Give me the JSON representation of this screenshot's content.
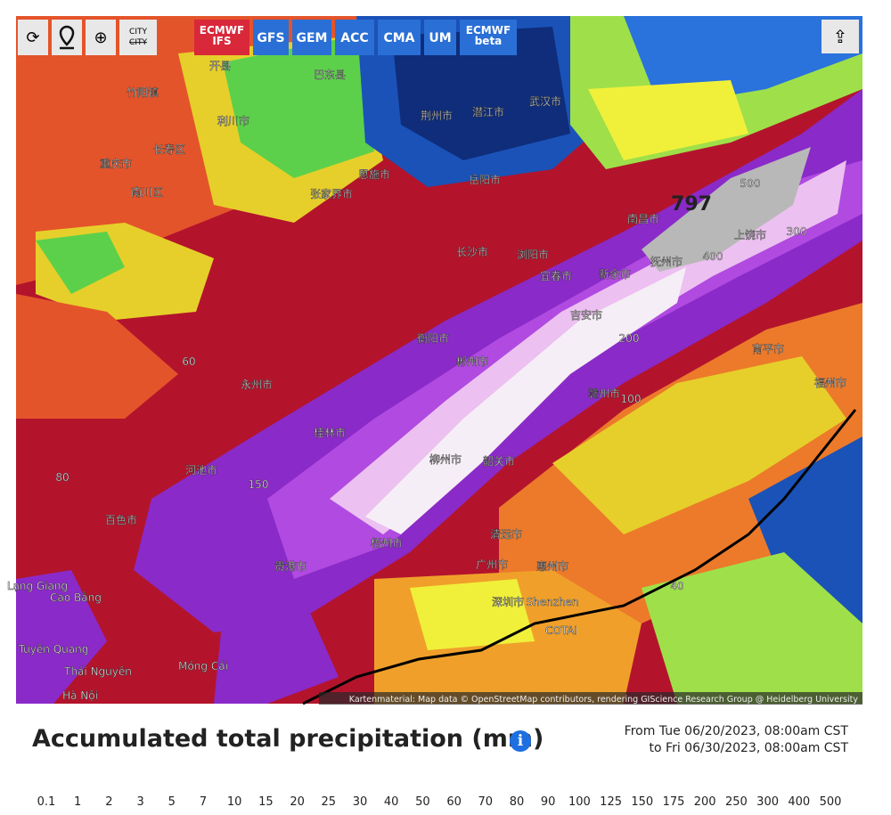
{
  "toolbar": {
    "reload": "⟳",
    "zoom": "⊕",
    "city": "CITY",
    "models": [
      "ECMWF IFS",
      "GFS",
      "GEM",
      "ACC",
      "CMA",
      "UM",
      "ECMWF beta"
    ],
    "share": "⇪"
  },
  "map": {
    "labels": [
      "开县",
      "巴东县",
      "竹阳镇",
      "重庆市",
      "长寿区",
      "南川区",
      "利川市",
      "恩施市",
      "张家界市",
      "荆州市",
      "潜江市",
      "武汉市",
      "岳阳市",
      "长沙市",
      "浏阳市",
      "宜春市",
      "新余市",
      "南昌市",
      "抚州市",
      "上饶市",
      "吉安市",
      "赣州市",
      "郴州市",
      "韶关市",
      "清远市",
      "广州市",
      "惠州市",
      "深圳市",
      "Shenzhen",
      "COTAI",
      "梧州市",
      "贵港市",
      "百色市",
      "河池市",
      "柳州市",
      "桂林市",
      "永州市",
      "衡阳市",
      "福州市",
      "南平市",
      "Cao Bằng",
      "Thái Nguyên",
      "Tuyên Quang",
      "Móng Cái",
      "Hà Nội",
      "Lạng Giang",
      "797",
      "500",
      "400",
      "300",
      "200",
      "150",
      "100",
      "80",
      "60",
      "40"
    ],
    "attribution": "Kartenmaterial: Map data © OpenStreetMap contributors, rendering GIScience Research Group @ Heidelberg University"
  },
  "legend": {
    "title": "Accumulated total precipitation (mm)",
    "info": "i",
    "from": "From Tue 06/20/2023, 08:00am CST",
    "to": "to Fri 06/30/2023, 08:00am CST",
    "levels": [
      0.1,
      1,
      2,
      3,
      5,
      7,
      10,
      15,
      20,
      25,
      30,
      40,
      50,
      60,
      70,
      80,
      90,
      100,
      125,
      150,
      175,
      200,
      250,
      300,
      400,
      500
    ],
    "colors": [
      "#d9d9ef",
      "#a8cdf5",
      "#7ab3f2",
      "#4c94ea",
      "#2a72dc",
      "#1a52b8",
      "#0f2d7a",
      "#1a7a2a",
      "#2fa838",
      "#5cd04a",
      "#9fe04a",
      "#f0f03a",
      "#e6cf2a",
      "#f0a02a",
      "#ec7a2a",
      "#e4542a",
      "#d6303a",
      "#b8142e",
      "#8a0a24",
      "#5a1a7a",
      "#8a2ac8",
      "#b04ae0",
      "#d07ae8",
      "#ecc0f0",
      "#f6eef6"
    ],
    "gray": "#b8b8b8"
  }
}
